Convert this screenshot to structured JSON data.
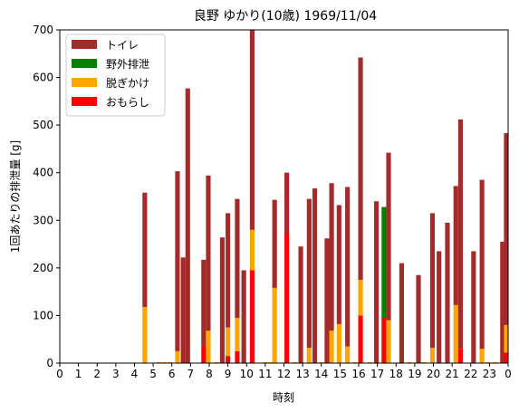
{
  "chart_data": {
    "type": "bar",
    "stacked": true,
    "title": "良野 ゆかり(10歳) 1969/11/04",
    "xlabel": "時刻",
    "ylabel": "1回あたりの排泄量 [g]",
    "xlim": [
      0,
      24
    ],
    "ylim": [
      0,
      700
    ],
    "x_ticks": [
      0,
      1,
      2,
      3,
      4,
      5,
      6,
      7,
      8,
      9,
      10,
      11,
      12,
      13,
      14,
      15,
      16,
      17,
      18,
      19,
      20,
      21,
      22,
      23,
      24
    ],
    "x_tick_labels": [
      "0",
      "1",
      "2",
      "3",
      "4",
      "5",
      "6",
      "7",
      "8",
      "9",
      "10",
      "11",
      "12",
      "13",
      "14",
      "15",
      "16",
      "17",
      "18",
      "19",
      "20",
      "21",
      "22",
      "23",
      "0"
    ],
    "y_ticks": [
      0,
      100,
      200,
      300,
      400,
      500,
      600,
      700
    ],
    "legend_position": "top-left",
    "bar_width_hours": 0.25,
    "series": [
      {
        "name": "トイレ",
        "key": "toilet",
        "color": "#a52a2a"
      },
      {
        "name": "野外排泄",
        "key": "outdoor",
        "color": "#008000"
      },
      {
        "name": "脱ぎかけ",
        "key": "half",
        "color": "#ffa500"
      },
      {
        "name": "おもらし",
        "key": "leak",
        "color": "#ff0000"
      }
    ],
    "events": [
      {
        "time": 4.55,
        "leak": 0,
        "half": 118,
        "outdoor": 0,
        "toilet": 240
      },
      {
        "time": 6.3,
        "leak": 0,
        "half": 25,
        "outdoor": 0,
        "toilet": 378
      },
      {
        "time": 6.6,
        "leak": 0,
        "half": 0,
        "outdoor": 0,
        "toilet": 222
      },
      {
        "time": 6.85,
        "leak": 0,
        "half": 0,
        "outdoor": 0,
        "toilet": 577
      },
      {
        "time": 7.7,
        "leak": 35,
        "half": 0,
        "outdoor": 0,
        "toilet": 182
      },
      {
        "time": 7.95,
        "leak": 0,
        "half": 68,
        "outdoor": 0,
        "toilet": 326
      },
      {
        "time": 8.7,
        "leak": 0,
        "half": 0,
        "outdoor": 0,
        "toilet": 264
      },
      {
        "time": 9.0,
        "leak": 15,
        "half": 60,
        "outdoor": 0,
        "toilet": 240
      },
      {
        "time": 9.5,
        "leak": 25,
        "half": 70,
        "outdoor": 0,
        "toilet": 250
      },
      {
        "time": 9.85,
        "leak": 0,
        "half": 0,
        "outdoor": 0,
        "toilet": 195
      },
      {
        "time": 10.3,
        "leak": 195,
        "half": 85,
        "outdoor": 0,
        "toilet": 420
      },
      {
        "time": 11.5,
        "leak": 0,
        "half": 158,
        "outdoor": 0,
        "toilet": 185
      },
      {
        "time": 12.15,
        "leak": 272,
        "half": 0,
        "outdoor": 0,
        "toilet": 128
      },
      {
        "time": 12.9,
        "leak": 0,
        "half": 0,
        "outdoor": 0,
        "toilet": 245
      },
      {
        "time": 13.35,
        "leak": 0,
        "half": 32,
        "outdoor": 0,
        "toilet": 313
      },
      {
        "time": 13.65,
        "leak": 0,
        "half": 0,
        "outdoor": 0,
        "toilet": 367
      },
      {
        "time": 14.3,
        "leak": 0,
        "half": 0,
        "outdoor": 0,
        "toilet": 262
      },
      {
        "time": 14.55,
        "leak": 0,
        "half": 68,
        "outdoor": 0,
        "toilet": 310
      },
      {
        "time": 14.95,
        "leak": 0,
        "half": 82,
        "outdoor": 0,
        "toilet": 250
      },
      {
        "time": 15.4,
        "leak": 0,
        "half": 35,
        "outdoor": 0,
        "toilet": 335
      },
      {
        "time": 16.1,
        "leak": 100,
        "half": 75,
        "outdoor": 0,
        "toilet": 467
      },
      {
        "time": 16.95,
        "leak": 0,
        "half": 0,
        "outdoor": 0,
        "toilet": 340
      },
      {
        "time": 17.35,
        "leak": 95,
        "half": 0,
        "outdoor": 233,
        "toilet": 0
      },
      {
        "time": 17.6,
        "leak": 0,
        "half": 90,
        "outdoor": 0,
        "toilet": 352
      },
      {
        "time": 18.3,
        "leak": 0,
        "half": 0,
        "outdoor": 0,
        "toilet": 210
      },
      {
        "time": 19.2,
        "leak": 0,
        "half": 0,
        "outdoor": 0,
        "toilet": 185
      },
      {
        "time": 19.95,
        "leak": 0,
        "half": 32,
        "outdoor": 0,
        "toilet": 283
      },
      {
        "time": 20.3,
        "leak": 0,
        "half": 0,
        "outdoor": 0,
        "toilet": 235
      },
      {
        "time": 20.75,
        "leak": 0,
        "half": 0,
        "outdoor": 0,
        "toilet": 295
      },
      {
        "time": 21.2,
        "leak": 0,
        "half": 122,
        "outdoor": 0,
        "toilet": 250
      },
      {
        "time": 21.45,
        "leak": 30,
        "half": 0,
        "outdoor": 0,
        "toilet": 482
      },
      {
        "time": 22.15,
        "leak": 0,
        "half": 0,
        "outdoor": 0,
        "toilet": 235
      },
      {
        "time": 22.6,
        "leak": 0,
        "half": 30,
        "outdoor": 0,
        "toilet": 355
      },
      {
        "time": 23.7,
        "leak": 0,
        "half": 0,
        "outdoor": 0,
        "toilet": 255
      },
      {
        "time": 23.9,
        "leak": 22,
        "half": 58,
        "outdoor": 0,
        "toilet": 403
      }
    ],
    "baseline_marks": [
      {
        "time": 5.3,
        "half": 2
      },
      {
        "time": 5.6,
        "half": 2
      },
      {
        "time": 5.9,
        "half": 2
      },
      {
        "time": 8.4,
        "half": 2
      },
      {
        "time": 11.0,
        "half": 2
      },
      {
        "time": 11.3,
        "half": 2
      },
      {
        "time": 12.6,
        "half": 2
      },
      {
        "time": 14.0,
        "half": 2
      },
      {
        "time": 15.8,
        "half": 2
      },
      {
        "time": 16.6,
        "half": 2
      },
      {
        "time": 18.7,
        "half": 2
      },
      {
        "time": 19.5,
        "half": 2
      },
      {
        "time": 22.9,
        "half": 2
      },
      {
        "time": 23.3,
        "half": 2
      }
    ]
  }
}
